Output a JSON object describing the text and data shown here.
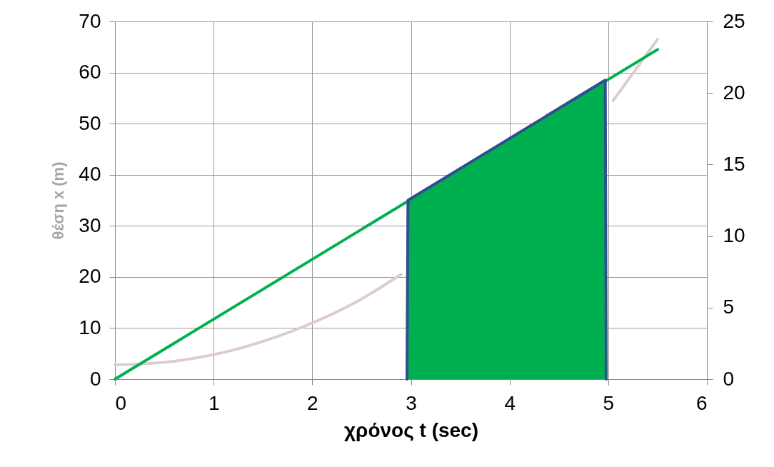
{
  "chart_data": {
    "type": "line",
    "xlabel": "χρόνος t (sec)",
    "ylabel": "θέση x (m)",
    "xlim": [
      0,
      6
    ],
    "xticks": [
      0,
      1,
      2,
      3,
      4,
      5,
      6
    ],
    "ylim": [
      0,
      70
    ],
    "yticks": [
      0,
      10,
      20,
      30,
      40,
      50,
      60,
      70
    ],
    "y2lim": [
      0,
      25
    ],
    "y2ticks": [
      0,
      5,
      10,
      15,
      20,
      25
    ],
    "grid": true,
    "marker": "none",
    "line_style": "solid",
    "series": [
      {
        "color": "#dccdcd",
        "x": [
          0,
          0.5,
          1,
          1.5,
          2,
          2.5,
          2.9,
          3.5,
          4,
          4.5,
          5.05,
          5.5
        ],
        "values": [
          2.8,
          3.3,
          4.8,
          7.4,
          11,
          15.7,
          20.5,
          null,
          null,
          null,
          54.5,
          66.5
        ]
      },
      {
        "color": "#00b050",
        "x": [
          0,
          5.5
        ],
        "values": [
          0,
          64.5
        ]
      },
      {
        "type": "area",
        "color": "#00b050",
        "x": [
          2.97,
          4.97
        ],
        "values": [
          35,
          58.5
        ]
      },
      {
        "color": "#2f4f8f",
        "x": [
          2.96,
          2.97,
          4.97,
          4.98
        ],
        "values": [
          0,
          35,
          58.5,
          0
        ]
      }
    ]
  }
}
